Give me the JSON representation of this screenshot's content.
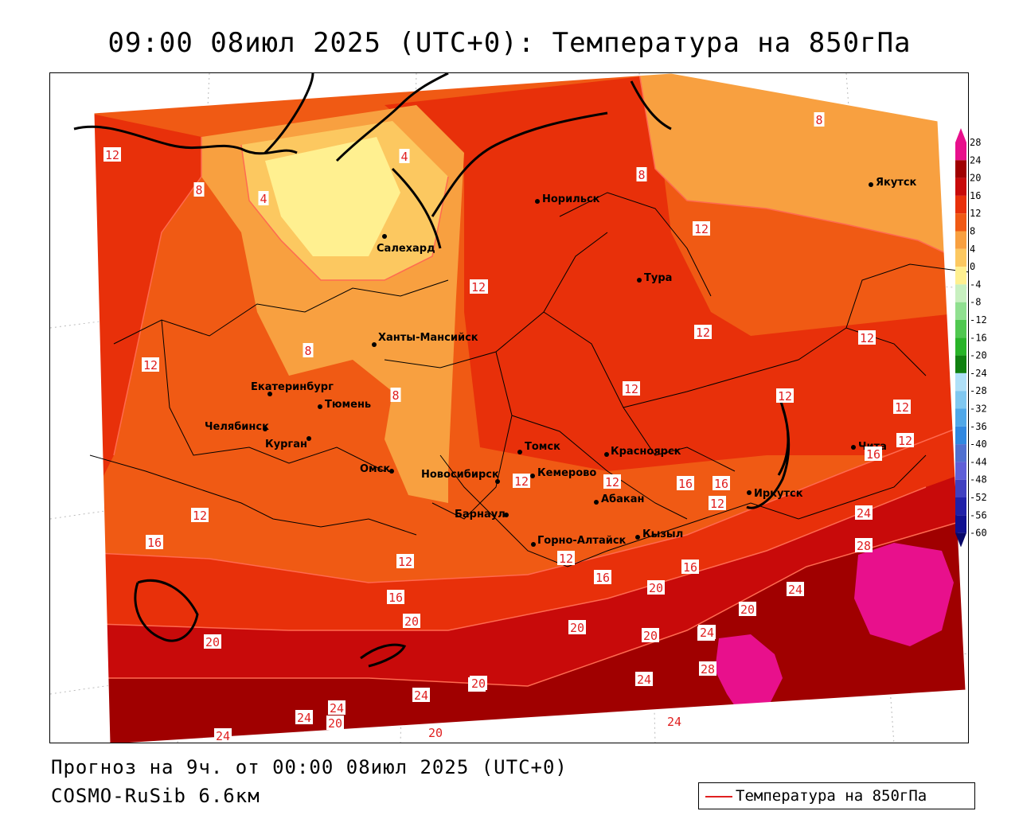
{
  "title": "09:00 08июл 2025 (UTC+0): Температура на 850гПа",
  "forecast_text": "Прогноз на 9ч. от 00:00 08июл 2025 (UTC+0)",
  "model_text": "COSMO-RuSib 6.6км",
  "legend": {
    "line_label": "Температура на 850гПа",
    "line_color": "#e02020"
  },
  "colorbar": {
    "ticks": [
      "28",
      "24",
      "20",
      "16",
      "12",
      "8",
      "4",
      "0",
      "-4",
      "-8",
      "-12",
      "-16",
      "-20",
      "-24",
      "-28",
      "-32",
      "-36",
      "-40",
      "-44",
      "-48",
      "-52",
      "-56",
      "-60"
    ],
    "colors": {
      "t28": "#e8108c",
      "t24": "#a00000",
      "t20": "#c80a0a",
      "t16": "#e8300a",
      "t12": "#f05a14",
      "t8": "#f8a040",
      "t4": "#fcc860",
      "t0": "#fff090",
      "tm4": "#c8f0c0",
      "tm8": "#90e090",
      "tm12": "#50c850",
      "tm16": "#28b428",
      "tm20": "#108010",
      "tm24": "#b0e0f8",
      "tm28": "#80c8f0",
      "tm32": "#50a8e8",
      "tm36": "#3088e0",
      "tm40": "#5070d0",
      "tm44": "#6060d8",
      "tm48": "#4040c0",
      "tm52": "#2020a8",
      "tm56": "#101090",
      "tm60": "#080868"
    }
  },
  "cities": [
    {
      "name": "Норильск"
    },
    {
      "name": "Якутск"
    },
    {
      "name": "Салехард"
    },
    {
      "name": "Тура"
    },
    {
      "name": "Ханты-Мансийск"
    },
    {
      "name": "Екатеринбург"
    },
    {
      "name": "Тюмень"
    },
    {
      "name": "Челябинск"
    },
    {
      "name": "Курган"
    },
    {
      "name": "Омск"
    },
    {
      "name": "Новосибирск"
    },
    {
      "name": "Томск"
    },
    {
      "name": "Кемерово"
    },
    {
      "name": "Красноярск"
    },
    {
      "name": "Абакан"
    },
    {
      "name": "Барнаул"
    },
    {
      "name": "Горно-Алтайск"
    },
    {
      "name": "Кызыл"
    },
    {
      "name": "Иркутск"
    },
    {
      "name": "Чита"
    }
  ],
  "isotherm_labels": [
    "12",
    "8",
    "4",
    "4",
    "8",
    "8",
    "12",
    "12",
    "12",
    "8",
    "12",
    "12",
    "12",
    "8",
    "12",
    "12",
    "12",
    "12",
    "12",
    "12",
    "16",
    "16",
    "16",
    "12",
    "12",
    "16",
    "16",
    "24",
    "28",
    "16",
    "12",
    "16",
    "20",
    "20",
    "20",
    "20",
    "24",
    "24",
    "20",
    "20",
    "20",
    "20",
    "24",
    "24",
    "24",
    "24",
    "24",
    "20",
    "28",
    "24",
    "20",
    "24",
    "12"
  ]
}
